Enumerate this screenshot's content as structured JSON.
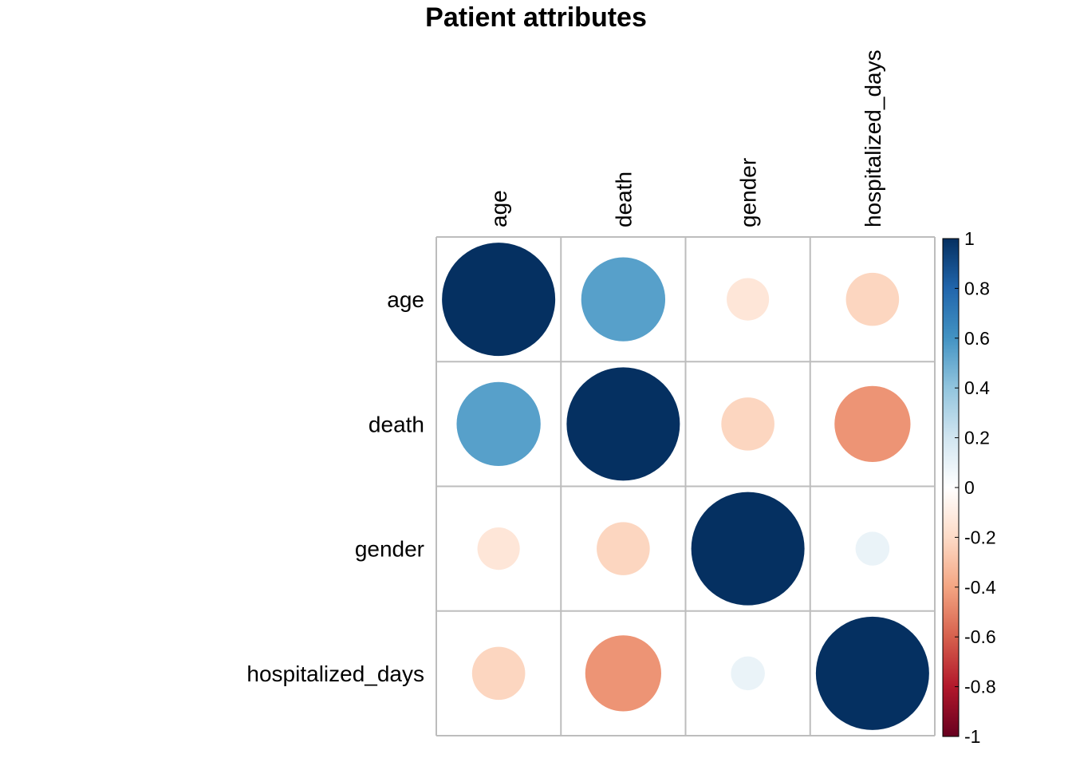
{
  "chart_data": {
    "type": "heatmap",
    "subtype": "correlation-circles",
    "title": "Patient attributes",
    "variables": [
      "age",
      "death",
      "gender",
      "hospitalized_days"
    ],
    "matrix": [
      [
        1.0,
        0.55,
        -0.14,
        -0.22
      ],
      [
        0.55,
        1.0,
        -0.22,
        -0.45
      ],
      [
        -0.14,
        -0.22,
        1.0,
        0.09
      ],
      [
        -0.22,
        -0.45,
        0.09,
        1.0
      ]
    ],
    "color_range": [
      -1,
      1
    ],
    "legend": {
      "placement": "right",
      "ticks": [
        "1",
        "0.8",
        "0.6",
        "0.4",
        "0.2",
        "0",
        "-0.2",
        "-0.4",
        "-0.6",
        "-0.8",
        "-1"
      ],
      "colors": [
        "#67001F",
        "#B2182B",
        "#D6604D",
        "#F4A582",
        "#FDDBC7",
        "#FFFFFF",
        "#D1E5F0",
        "#92C5DE",
        "#4393C3",
        "#2166AC",
        "#053061"
      ]
    },
    "grid": true
  }
}
